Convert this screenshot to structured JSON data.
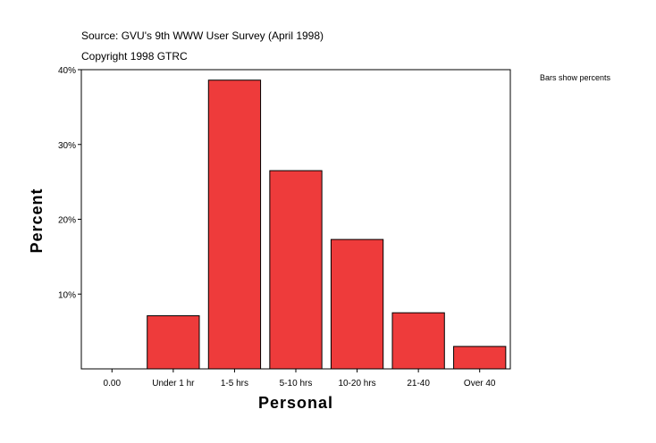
{
  "source_line": "Source: GVU's 9th WWW User Survey (April 1998)",
  "copyright_line": "Copyright 1998 GTRC",
  "note": "Bars show percents",
  "chart_data": {
    "type": "bar",
    "categories": [
      "0.00",
      "Under 1 hr",
      "1-5 hrs",
      "5-10 hrs",
      "10-20 hrs",
      "21-40",
      "Over 40"
    ],
    "values": [
      0,
      7.1,
      38.6,
      26.5,
      17.3,
      7.5,
      3.0
    ],
    "xlabel": "Personal",
    "ylabel": "Percent",
    "ylim": [
      0,
      40
    ],
    "yticks": [
      10,
      20,
      30,
      40
    ],
    "ytick_labels": [
      "10%",
      "20%",
      "30%",
      "40%"
    ],
    "bar_color": "#EE3B3B",
    "grid": false,
    "legend": "none"
  }
}
